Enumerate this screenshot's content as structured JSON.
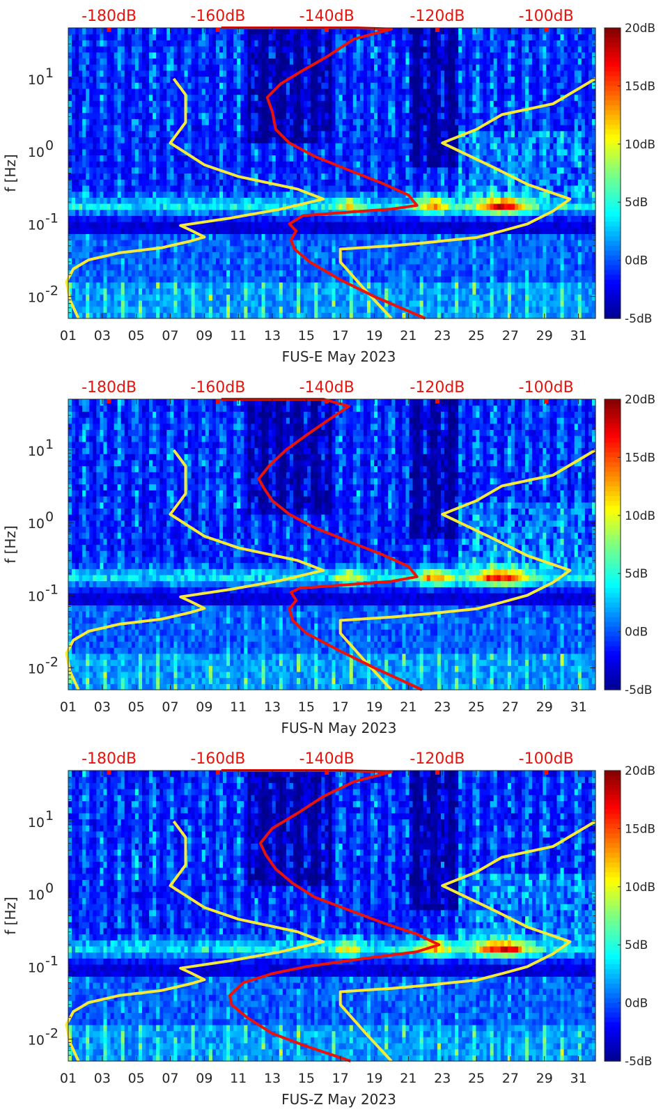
{
  "chart_data": [
    {
      "type": "heatmap",
      "xlabel": "FUS-E May 2023",
      "ylabel": "f [Hz]",
      "x_tick_labels": [
        "01",
        "03",
        "05",
        "07",
        "09",
        "11",
        "13",
        "15",
        "17",
        "19",
        "21",
        "23",
        "25",
        "27",
        "29",
        "31"
      ],
      "x_ticks": [
        1,
        3,
        5,
        7,
        9,
        11,
        13,
        15,
        17,
        19,
        21,
        23,
        25,
        27,
        29,
        31
      ],
      "xlim": [
        1,
        32
      ],
      "y_scale": "log",
      "ylim": [
        0.005,
        50
      ],
      "y_tick_labels": [
        {
          "value": 0.01,
          "base": "10",
          "exp": "-2"
        },
        {
          "value": 0.1,
          "base": "10",
          "exp": "-1"
        },
        {
          "value": 1,
          "base": "10",
          "exp": "0"
        },
        {
          "value": 10,
          "base": "10",
          "exp": "1"
        }
      ],
      "top_axis_labels": [
        "-180dB",
        "-160dB",
        "-140dB",
        "-120dB",
        "-100dB"
      ],
      "top_axis_positions": [
        3.4,
        9.8,
        16.2,
        22.7,
        29.1
      ],
      "colorbar": {
        "labels": [
          "20dB",
          "15dB",
          "10dB",
          "5dB",
          "0dB",
          "-5dB"
        ],
        "range": [
          -5,
          20
        ]
      },
      "colors": {
        "low_model": "#f5e93a",
        "high_model": "#e8130c"
      },
      "series": [
        {
          "values": [
            [
              1.6,
              0.005
            ],
            [
              1.1,
              0.009
            ],
            [
              0.9,
              0.016
            ],
            [
              1.3,
              0.024
            ],
            [
              2.2,
              0.032
            ],
            [
              4.0,
              0.04
            ],
            [
              6.5,
              0.047
            ],
            [
              8.2,
              0.058
            ],
            [
              9.0,
              0.066
            ],
            [
              8.2,
              0.082
            ],
            [
              7.6,
              0.095
            ],
            [
              10.5,
              0.12
            ],
            [
              13.5,
              0.16
            ],
            [
              16.0,
              0.22
            ],
            [
              14.5,
              0.3
            ],
            [
              11.0,
              0.45
            ],
            [
              9.0,
              0.65
            ],
            [
              7.0,
              1.3
            ],
            [
              7.9,
              2.5
            ],
            [
              7.9,
              6.0
            ],
            [
              7.2,
              10.0
            ]
          ]
        },
        {
          "values": [
            [
              20.0,
              0.005
            ],
            [
              18.5,
              0.012
            ],
            [
              17.0,
              0.03
            ],
            [
              17.0,
              0.045
            ],
            [
              20.0,
              0.05
            ],
            [
              22.0,
              0.055
            ],
            [
              25.0,
              0.065
            ],
            [
              26.5,
              0.08
            ],
            [
              28.0,
              0.1
            ],
            [
              29.5,
              0.15
            ],
            [
              30.5,
              0.22
            ],
            [
              28.0,
              0.35
            ],
            [
              26.0,
              0.6
            ],
            [
              23.0,
              1.3
            ],
            [
              25.0,
              2.0
            ],
            [
              26.5,
              3.2
            ],
            [
              29.5,
              4.5
            ],
            [
              32.0,
              10.0
            ]
          ]
        },
        {
          "values": [
            [
              22.0,
              0.005
            ],
            [
              19.0,
              0.01
            ],
            [
              17.0,
              0.017
            ],
            [
              15.2,
              0.03
            ],
            [
              14.3,
              0.045
            ],
            [
              14.1,
              0.06
            ],
            [
              14.4,
              0.08
            ],
            [
              14.0,
              0.1
            ],
            [
              14.8,
              0.13
            ],
            [
              17.5,
              0.145
            ],
            [
              20.0,
              0.16
            ],
            [
              21.5,
              0.18
            ],
            [
              21.0,
              0.25
            ],
            [
              19.5,
              0.36
            ],
            [
              17.5,
              0.55
            ],
            [
              15.5,
              0.85
            ],
            [
              14.0,
              1.3
            ],
            [
              13.2,
              2.0
            ],
            [
              13.0,
              3.5
            ],
            [
              12.7,
              5.5
            ],
            [
              13.5,
              8.5
            ],
            [
              14.8,
              13.0
            ],
            [
              16.2,
              20.0
            ],
            [
              17.8,
              35.0
            ],
            [
              20.0,
              48.0
            ],
            [
              18.0,
              50.0
            ],
            [
              12.0,
              50.0
            ],
            [
              10.0,
              50.0
            ]
          ]
        }
      ]
    },
    {
      "type": "heatmap",
      "xlabel": "FUS-N May 2023",
      "ylabel": "f [Hz]",
      "x_tick_labels": [
        "01",
        "03",
        "05",
        "07",
        "09",
        "11",
        "13",
        "15",
        "17",
        "19",
        "21",
        "23",
        "25",
        "27",
        "29",
        "31"
      ],
      "x_ticks": [
        1,
        3,
        5,
        7,
        9,
        11,
        13,
        15,
        17,
        19,
        21,
        23,
        25,
        27,
        29,
        31
      ],
      "xlim": [
        1,
        32
      ],
      "y_scale": "log",
      "ylim": [
        0.005,
        50
      ],
      "y_tick_labels": [
        {
          "value": 0.01,
          "base": "10",
          "exp": "-2"
        },
        {
          "value": 0.1,
          "base": "10",
          "exp": "-1"
        },
        {
          "value": 1,
          "base": "10",
          "exp": "0"
        },
        {
          "value": 10,
          "base": "10",
          "exp": "1"
        }
      ],
      "top_axis_labels": [
        "-180dB",
        "-160dB",
        "-140dB",
        "-120dB",
        "-100dB"
      ],
      "top_axis_positions": [
        3.4,
        9.8,
        16.2,
        22.7,
        29.1
      ],
      "colorbar": {
        "labels": [
          "20dB",
          "15dB",
          "10dB",
          "5dB",
          "0dB",
          "-5dB"
        ],
        "range": [
          -5,
          20
        ]
      },
      "colors": {
        "low_model": "#f5e93a",
        "high_model": "#e8130c"
      },
      "series": [
        {
          "values": [
            [
              1.6,
              0.005
            ],
            [
              1.1,
              0.009
            ],
            [
              0.9,
              0.016
            ],
            [
              1.3,
              0.024
            ],
            [
              2.2,
              0.032
            ],
            [
              4.0,
              0.04
            ],
            [
              6.5,
              0.047
            ],
            [
              8.2,
              0.058
            ],
            [
              9.0,
              0.066
            ],
            [
              8.2,
              0.082
            ],
            [
              7.6,
              0.095
            ],
            [
              10.5,
              0.12
            ],
            [
              13.5,
              0.16
            ],
            [
              16.0,
              0.22
            ],
            [
              14.5,
              0.3
            ],
            [
              11.0,
              0.45
            ],
            [
              9.0,
              0.65
            ],
            [
              7.0,
              1.3
            ],
            [
              7.9,
              2.5
            ],
            [
              7.9,
              6.0
            ],
            [
              7.2,
              10.0
            ]
          ]
        },
        {
          "values": [
            [
              20.0,
              0.005
            ],
            [
              18.5,
              0.012
            ],
            [
              17.0,
              0.03
            ],
            [
              17.0,
              0.045
            ],
            [
              20.0,
              0.05
            ],
            [
              22.0,
              0.055
            ],
            [
              25.0,
              0.065
            ],
            [
              26.5,
              0.08
            ],
            [
              28.0,
              0.1
            ],
            [
              29.5,
              0.15
            ],
            [
              30.5,
              0.22
            ],
            [
              28.0,
              0.35
            ],
            [
              26.0,
              0.6
            ],
            [
              23.0,
              1.3
            ],
            [
              25.0,
              2.0
            ],
            [
              26.5,
              3.2
            ],
            [
              29.5,
              4.5
            ],
            [
              32.0,
              10.0
            ]
          ]
        },
        {
          "values": [
            [
              21.8,
              0.005
            ],
            [
              19.0,
              0.01
            ],
            [
              17.0,
              0.017
            ],
            [
              15.0,
              0.03
            ],
            [
              14.2,
              0.045
            ],
            [
              14.0,
              0.065
            ],
            [
              14.4,
              0.085
            ],
            [
              14.1,
              0.11
            ],
            [
              14.6,
              0.125
            ],
            [
              17.5,
              0.14
            ],
            [
              20.0,
              0.155
            ],
            [
              21.5,
              0.18
            ],
            [
              21.0,
              0.25
            ],
            [
              19.5,
              0.36
            ],
            [
              17.5,
              0.55
            ],
            [
              15.5,
              0.85
            ],
            [
              14.0,
              1.3
            ],
            [
              13.0,
              2.0
            ],
            [
              12.5,
              3.0
            ],
            [
              12.2,
              4.0
            ],
            [
              12.8,
              6.0
            ],
            [
              13.8,
              10.0
            ],
            [
              15.0,
              16.0
            ],
            [
              16.2,
              25.0
            ],
            [
              17.5,
              40.0
            ],
            [
              16.0,
              50.0
            ],
            [
              12.0,
              50.0
            ],
            [
              10.0,
              50.0
            ]
          ]
        }
      ]
    },
    {
      "type": "heatmap",
      "xlabel": "FUS-Z May 2023",
      "ylabel": "f [Hz]",
      "x_tick_labels": [
        "01",
        "03",
        "05",
        "07",
        "09",
        "11",
        "13",
        "15",
        "17",
        "19",
        "21",
        "23",
        "25",
        "27",
        "29",
        "31"
      ],
      "x_ticks": [
        1,
        3,
        5,
        7,
        9,
        11,
        13,
        15,
        17,
        19,
        21,
        23,
        25,
        27,
        29,
        31
      ],
      "xlim": [
        1,
        32
      ],
      "y_scale": "log",
      "ylim": [
        0.005,
        50
      ],
      "y_tick_labels": [
        {
          "value": 0.01,
          "base": "10",
          "exp": "-2"
        },
        {
          "value": 0.1,
          "base": "10",
          "exp": "-1"
        },
        {
          "value": 1,
          "base": "10",
          "exp": "0"
        },
        {
          "value": 10,
          "base": "10",
          "exp": "1"
        }
      ],
      "top_axis_labels": [
        "-180dB",
        "-160dB",
        "-140dB",
        "-120dB",
        "-100dB"
      ],
      "top_axis_positions": [
        3.4,
        9.8,
        16.2,
        22.7,
        29.1
      ],
      "colorbar": {
        "labels": [
          "20dB",
          "15dB",
          "10dB",
          "5dB",
          "0dB",
          "-5dB"
        ],
        "range": [
          -5,
          20
        ]
      },
      "colors": {
        "low_model": "#f5e93a",
        "high_model": "#e8130c"
      },
      "series": [
        {
          "values": [
            [
              1.6,
              0.005
            ],
            [
              1.1,
              0.009
            ],
            [
              0.9,
              0.016
            ],
            [
              1.3,
              0.024
            ],
            [
              2.2,
              0.032
            ],
            [
              4.0,
              0.04
            ],
            [
              6.5,
              0.047
            ],
            [
              8.2,
              0.058
            ],
            [
              9.0,
              0.066
            ],
            [
              8.2,
              0.082
            ],
            [
              7.6,
              0.095
            ],
            [
              10.5,
              0.12
            ],
            [
              13.5,
              0.16
            ],
            [
              16.0,
              0.22
            ],
            [
              14.5,
              0.3
            ],
            [
              11.0,
              0.45
            ],
            [
              9.0,
              0.65
            ],
            [
              7.0,
              1.3
            ],
            [
              7.9,
              2.5
            ],
            [
              7.9,
              6.0
            ],
            [
              7.2,
              10.0
            ]
          ]
        },
        {
          "values": [
            [
              20.0,
              0.005
            ],
            [
              18.5,
              0.012
            ],
            [
              17.0,
              0.03
            ],
            [
              17.0,
              0.045
            ],
            [
              20.0,
              0.05
            ],
            [
              22.0,
              0.055
            ],
            [
              25.0,
              0.065
            ],
            [
              26.5,
              0.08
            ],
            [
              28.0,
              0.1
            ],
            [
              29.5,
              0.15
            ],
            [
              30.5,
              0.22
            ],
            [
              28.0,
              0.35
            ],
            [
              26.0,
              0.6
            ],
            [
              23.0,
              1.3
            ],
            [
              25.0,
              2.0
            ],
            [
              26.5,
              3.2
            ],
            [
              29.5,
              4.5
            ],
            [
              32.0,
              10.0
            ]
          ]
        },
        {
          "values": [
            [
              17.6,
              0.005
            ],
            [
              15.0,
              0.008
            ],
            [
              13.0,
              0.012
            ],
            [
              11.5,
              0.02
            ],
            [
              10.6,
              0.03
            ],
            [
              10.5,
              0.04
            ],
            [
              11.3,
              0.06
            ],
            [
              13.0,
              0.08
            ],
            [
              15.0,
              0.1
            ],
            [
              18.5,
              0.13
            ],
            [
              21.5,
              0.16
            ],
            [
              22.8,
              0.2
            ],
            [
              21.5,
              0.28
            ],
            [
              19.5,
              0.4
            ],
            [
              17.5,
              0.6
            ],
            [
              15.5,
              0.9
            ],
            [
              14.2,
              1.4
            ],
            [
              13.2,
              2.2
            ],
            [
              12.6,
              3.5
            ],
            [
              12.3,
              5.0
            ],
            [
              13.0,
              8.0
            ],
            [
              14.5,
              13.0
            ],
            [
              16.0,
              22.0
            ],
            [
              17.8,
              35.0
            ],
            [
              20.0,
              48.0
            ],
            [
              17.0,
              50.0
            ],
            [
              12.0,
              50.0
            ],
            [
              10.0,
              50.0
            ]
          ]
        }
      ]
    }
  ]
}
